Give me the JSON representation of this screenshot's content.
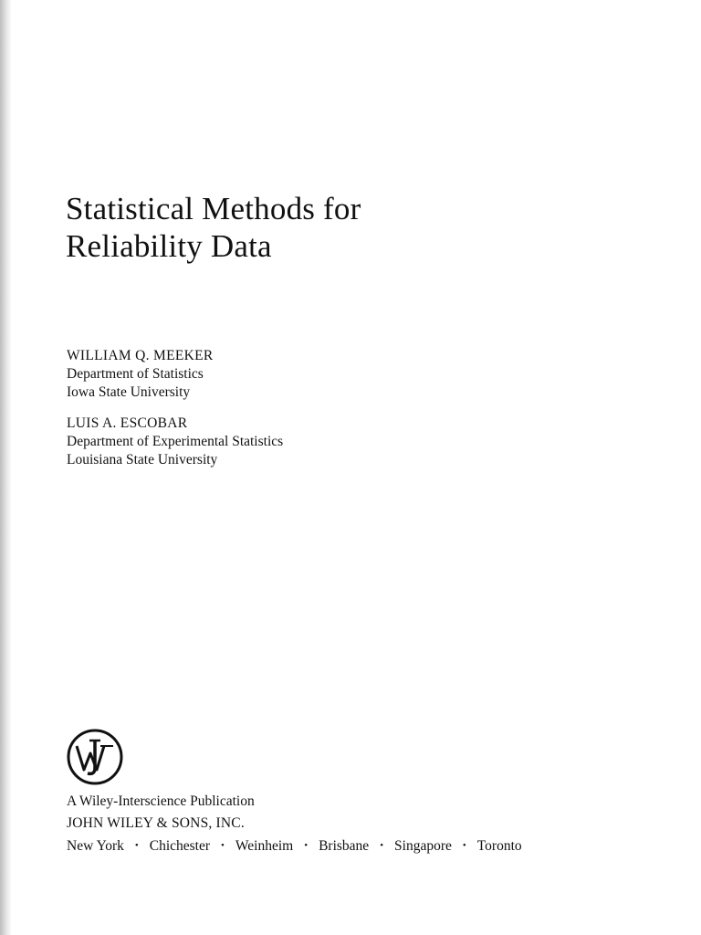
{
  "title": [
    "Statistical Methods for",
    "Reliability Data"
  ],
  "authors": [
    {
      "name": "WILLIAM Q. MEEKER",
      "affiliation": [
        "Department of Statistics",
        "Iowa State University"
      ]
    },
    {
      "name": "LUIS A. ESCOBAR",
      "affiliation": [
        "Department of Experimental Statistics",
        "Louisiana State University"
      ]
    }
  ],
  "publisher": {
    "imprint": "A Wiley-Interscience Publication",
    "name": "JOHN WILEY & SONS, INC.",
    "cities": [
      "New York",
      "Chichester",
      "Weinheim",
      "Brisbane",
      "Singapore",
      "Toronto"
    ]
  }
}
